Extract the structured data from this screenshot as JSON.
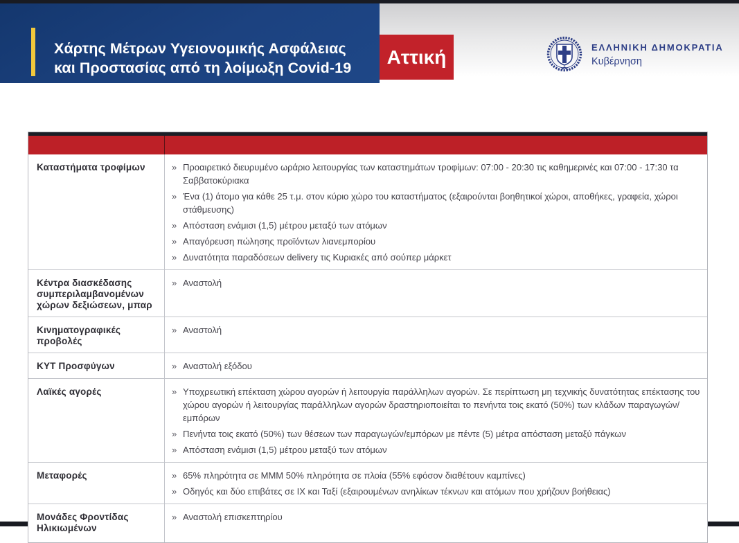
{
  "header": {
    "title_line1": "Χάρτης Μέτρων Υγειονομικής Ασφάλειας",
    "title_line2": "και Προστασίας από τη λοίμωξη Covid-19",
    "region_label": "Αττική",
    "gov_logo": {
      "emblem_icon": "greek-coat-of-arms",
      "line1": "ΕΛΛΗΝΙΚΗ ΔΗΜΟΚΡΑΤΙΑ",
      "line2": "Κυβέρνηση"
    }
  },
  "colors": {
    "header_blue": "#1c4280",
    "accent_yellow": "#f1c83c",
    "accent_red": "#c2222a",
    "band_red": "#bd2027",
    "logo_navy": "#2d3e86",
    "strip_dark": "#191b22"
  },
  "table": {
    "bullet_char": "»",
    "rows": [
      {
        "category": "Καταστήματα τροφίμων",
        "measures": [
          "Προαιρετικό διευρυμένο ωράριο λειτουργίας των καταστημάτων τροφίμων: 07:00 - 20:30 τις καθημερινές και 07:00 - 17:30 τα Σαββατοκύριακα",
          "Ένα (1) άτομο για κάθε 25 τ.μ. στον κύριο χώρο του καταστήματος (εξαιρούνται βοηθητικοί χώροι, αποθήκες, γραφεία, χώροι στάθμευσης)",
          "Απόσταση ενάμισι (1,5) μέτρου μεταξύ των ατόμων",
          "Απαγόρευση πώλησης προϊόντων λιανεμπορίου",
          "Δυνατότητα παραδόσεων delivery τις Κυριακές από σούπερ μάρκετ"
        ]
      },
      {
        "category": "Κέντρα διασκέδασης συμπεριλαμβανομένων χώρων δεξιώσεων, μπαρ",
        "measures": [
          "Αναστολή"
        ]
      },
      {
        "category": "Κινηματογραφικές προβολές",
        "measures": [
          "Αναστολή"
        ]
      },
      {
        "category": "ΚΥΤ Προσφύγων",
        "measures": [
          "Αναστολή εξόδου"
        ]
      },
      {
        "category": "Λαϊκές αγορές",
        "measures": [
          "Υποχρεωτική επέκταση χώρου αγορών ή λειτουργία παράλληλων αγορών. Σε περίπτωση μη τεχνικής δυνατότητας επέκτασης του χώρου αγορών ή λειτουργίας παράλληλων αγορών δραστηριοποιείται το πενήντα τοις εκατό (50%) των κλάδων παραγωγών/εμπόρων",
          "Πενήντα τοις εκατό (50%) των θέσεων των παραγωγών/εμπόρων με πέντε (5) μέτρα απόσταση μεταξύ πάγκων",
          "Απόσταση ενάμισι (1,5) μέτρου μεταξύ των ατόμων"
        ]
      },
      {
        "category": "Μεταφορές",
        "measures": [
          "65% πληρότητα σε ΜΜΜ 50% πληρότητα σε πλοία (55% εφόσον διαθέτουν καμπίνες)",
          "Οδηγός και δύο επιβάτες σε ΙΧ και Ταξί (εξαιρουμένων ανηλίκων τέκνων  και ατόμων που χρήζουν βοήθειας)"
        ]
      },
      {
        "category": "Μονάδες Φροντίδας Ηλικιωμένων",
        "measures": [
          "Αναστολή επισκεπτηρίου"
        ]
      }
    ]
  }
}
